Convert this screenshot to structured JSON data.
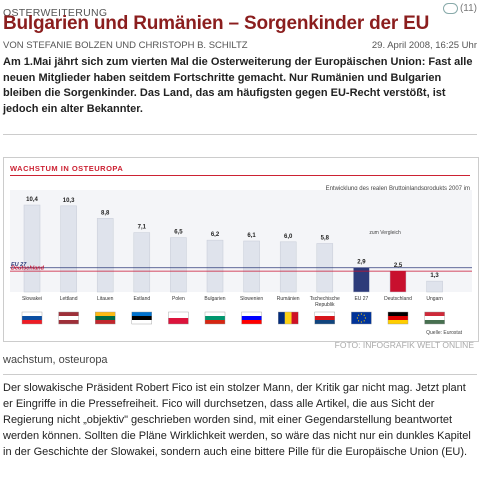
{
  "article": {
    "kicker": "OSTERWEITERUNG",
    "comment_count": "(11)",
    "headline": "Bulgarien und Rumänien – Sorgenkinder der EU",
    "byline": "VON STEFANIE BOLZEN UND CHRISTOPH B. SCHILTZ",
    "date": "29. April 2008, 16:25 Uhr",
    "lead": "Am 1.Mai jährt sich zum vierten Mal die Osterweiterung der Europäischen Union: Fast alle neuen Mitglieder haben seitdem Fortschritte gemacht. Nur Rumänien und Bulgarien bleiben die Sorgenkinder. Das Land, das am häufigsten gegen EU-Recht verstößt, ist jedoch ein alter Bekannter.",
    "image_credit": "FOTO: INFOGRAFIK WELT ONLINE",
    "caption": "wachstum, osteuropa",
    "body": "Der slowakische Präsident Robert Fico ist ein stolzer Mann, der Kritik gar nicht mag. Jetzt plant er Eingriffe in die Pressefreiheit. Fico will durchsetzen, dass alle Artikel, die aus Sicht der Regierung nicht „objektiv\" geschrieben worden sind, mit einer Gegendarstellung beantwortet werden können. Sollten die Pläne Wirklichkeit werden, so wäre das nicht nur ein dunkles Kapitel in der Geschichte der Slowakei, sondern auch eine bittere Pille für die Europäische Union (EU)."
  },
  "chart_data": {
    "type": "bar",
    "title": "WACHSTUM IN OSTEUROPA",
    "subtitle": "Entwicklung des realen Bruttoinlandsprodukts 2007 im Vergleich zum Vorjahr in Prozent",
    "comparison_label": "zum Vergleich",
    "source": "Quelle: Eurostat",
    "categories": [
      "Slowakei",
      "Lettland",
      "Litauen",
      "Estland",
      "Polen",
      "Bulgarien",
      "Slowenien",
      "Rumänien",
      "Tschechische Republik",
      "EU 27",
      "Deutschland",
      "Ungarn"
    ],
    "values": [
      10.4,
      10.3,
      8.8,
      7.1,
      6.5,
      6.2,
      6.1,
      6.0,
      5.8,
      2.9,
      2.5,
      1.3
    ],
    "value_labels": [
      "10,4",
      "10,3",
      "8,8",
      "7,1",
      "6,5",
      "6,2",
      "6,1",
      "6,0",
      "5,8",
      "2,9",
      "2,5",
      "1,3"
    ],
    "reference_lines": [
      {
        "label": "EU 27",
        "value": 2.9,
        "color": "#2d3b7a"
      },
      {
        "label": "Deutschland",
        "value": 2.5,
        "color": "#c8102e"
      }
    ],
    "ylim": [
      0,
      11
    ],
    "colors": {
      "normal": "#dfe3ec",
      "eu": "#2d3b7a",
      "de": "#c8102e",
      "hu": "#dfe3ec"
    },
    "flags": [
      [
        "#ffffff",
        "#0b4ea2",
        "#ee1c25"
      ],
      [
        "#9e3039",
        "#ffffff",
        "#9e3039"
      ],
      [
        "#fdb913",
        "#006a44",
        "#c1272d"
      ],
      [
        "#0072ce",
        "#000000",
        "#ffffff"
      ],
      [
        "#ffffff",
        "#dc143c"
      ],
      [
        "#ffffff",
        "#00966e",
        "#d62612"
      ],
      [
        "#ffffff",
        "#0000ff",
        "#ff0000"
      ],
      [
        "#002b7f",
        "#fcd116",
        "#ce1126"
      ],
      [
        "#ffffff",
        "#d7141a",
        "#11457e"
      ],
      [
        "#003399",
        "#ffcc00"
      ],
      [
        "#000000",
        "#dd0000",
        "#ffce00"
      ],
      [
        "#ce2939",
        "#ffffff",
        "#477050"
      ]
    ],
    "flag_orientation": [
      "h",
      "h",
      "h",
      "h",
      "h",
      "h",
      "h",
      "v",
      "h",
      "eu",
      "h",
      "h"
    ]
  }
}
